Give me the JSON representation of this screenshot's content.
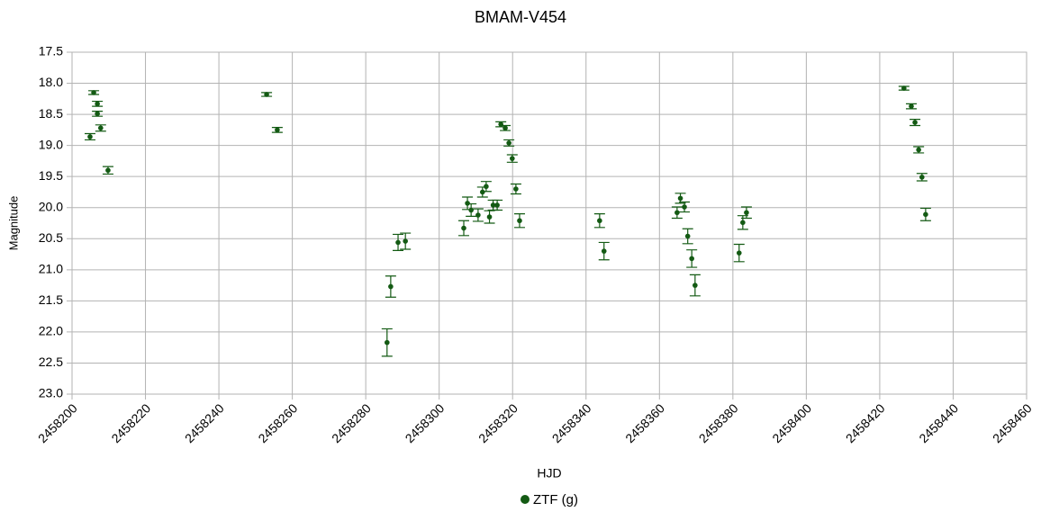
{
  "chart_data": {
    "type": "scatter",
    "title": "BMAM-V454",
    "x_label": "HJD",
    "y_label": "Magnitude",
    "xlim": [
      2458200,
      2458460
    ],
    "xticks": [
      2458200,
      2458220,
      2458240,
      2458260,
      2458280,
      2458300,
      2458320,
      2458340,
      2458360,
      2458380,
      2458400,
      2458420,
      2458440,
      2458460
    ],
    "ylim": [
      17.5,
      23
    ],
    "y_inverted": true,
    "yticks": [
      17.5,
      {
        "value": 18,
        "label": "18.0"
      },
      18.5,
      {
        "value": 19,
        "label": "19.0"
      },
      19.5,
      {
        "value": 20,
        "label": "20.0"
      },
      20.5,
      {
        "value": 21,
        "label": "21.0"
      },
      21.5,
      {
        "value": 22,
        "label": "22.0"
      },
      22.5,
      {
        "value": 23,
        "label": "23.0"
      }
    ],
    "grid": true,
    "legend": "bottom",
    "series": [
      {
        "name": "ZTF (g)",
        "color": "#135a13",
        "x": [
          2458204.9,
          2458205.9,
          2458206.9,
          2458206.9,
          2458207.8,
          2458209.8,
          2458253.0,
          2458255.9,
          2458285.8,
          2458286.8,
          2458288.8,
          2458290.8,
          2458306.7,
          2458307.7,
          2458308.7,
          2458310.6,
          2458311.8,
          2458312.8,
          2458313.7,
          2458314.7,
          2458315.8,
          2458316.8,
          2458318.0,
          2458319.0,
          2458319.9,
          2458320.9,
          2458321.9,
          2458343.7,
          2458344.9,
          2458364.8,
          2458365.7,
          2458366.8,
          2458367.7,
          2458368.8,
          2458369.7,
          2458381.7,
          2458382.7,
          2458383.7,
          2458426.6,
          2458428.6,
          2458429.6,
          2458430.6,
          2458431.5,
          2458432.5
        ],
        "values": [
          18.86,
          18.15,
          18.33,
          18.49,
          18.72,
          19.4,
          18.18,
          18.75,
          22.17,
          21.27,
          20.56,
          20.54,
          20.33,
          19.93,
          20.04,
          20.12,
          19.75,
          19.66,
          20.15,
          19.96,
          19.96,
          18.66,
          18.72,
          18.96,
          19.21,
          19.7,
          20.21,
          20.21,
          20.7,
          20.08,
          19.85,
          19.99,
          20.46,
          20.82,
          21.25,
          20.73,
          20.24,
          20.08,
          18.08,
          18.37,
          18.63,
          19.07,
          19.51,
          20.11
        ],
        "errors": [
          0.05,
          0.03,
          0.04,
          0.04,
          0.05,
          0.06,
          0.03,
          0.04,
          0.22,
          0.17,
          0.13,
          0.13,
          0.12,
          0.1,
          0.1,
          0.1,
          0.08,
          0.08,
          0.1,
          0.08,
          0.08,
          0.04,
          0.04,
          0.05,
          0.06,
          0.08,
          0.11,
          0.11,
          0.14,
          0.09,
          0.08,
          0.08,
          0.12,
          0.14,
          0.17,
          0.14,
          0.11,
          0.09,
          0.03,
          0.04,
          0.05,
          0.05,
          0.06,
          0.1
        ]
      }
    ]
  }
}
